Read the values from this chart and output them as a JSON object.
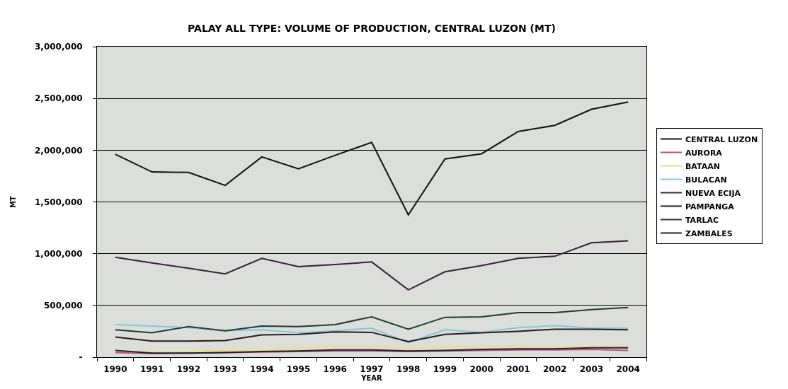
{
  "chart_data": {
    "type": "line",
    "title": "PALAY ALL TYPE: VOLUME OF PRODUCTION, CENTRAL LUZON (MT)",
    "xlabel": "YEAR",
    "ylabel": "MT",
    "categories": [
      "1990",
      "1991",
      "1992",
      "1993",
      "1994",
      "1995",
      "1996",
      "1997",
      "1998",
      "1999",
      "2000",
      "2001",
      "2002",
      "2003",
      "2004"
    ],
    "series": [
      {
        "name": "CENTRAL LUZON",
        "color": "#111111",
        "values": [
          1960000,
          1790000,
          1785000,
          1660000,
          1935000,
          1820000,
          1950000,
          2075000,
          1375000,
          1915000,
          1965000,
          2180000,
          2240000,
          2395000,
          2465000
        ]
      },
      {
        "name": "AURORA",
        "color": "#c0507a",
        "values": [
          45000,
          35000,
          40000,
          45000,
          50000,
          55000,
          60000,
          60000,
          55000,
          60000,
          65000,
          70000,
          70000,
          75000,
          65000
        ]
      },
      {
        "name": "BATAAN",
        "color": "#f0dc82",
        "values": [
          60000,
          50000,
          55000,
          65000,
          70000,
          85000,
          100000,
          100000,
          85000,
          95000,
          100000,
          105000,
          100000,
          105000,
          105000
        ]
      },
      {
        "name": "BULACAN",
        "color": "#7ec8e3",
        "values": [
          315000,
          300000,
          285000,
          255000,
          265000,
          235000,
          255000,
          280000,
          140000,
          265000,
          240000,
          285000,
          305000,
          280000,
          280000
        ]
      },
      {
        "name": "NUEVA ECIJA",
        "color": "#3a1f3d",
        "values": [
          965000,
          910000,
          860000,
          805000,
          955000,
          875000,
          895000,
          920000,
          650000,
          825000,
          885000,
          955000,
          975000,
          1105000,
          1125000
        ]
      },
      {
        "name": "PAMPANGA",
        "color": "#2a1a1a",
        "values": [
          195000,
          155000,
          155000,
          160000,
          215000,
          220000,
          245000,
          240000,
          150000,
          220000,
          235000,
          250000,
          270000,
          270000,
          265000
        ]
      },
      {
        "name": "TARLAC",
        "color": "#1f3a3a",
        "values": [
          265000,
          235000,
          295000,
          255000,
          300000,
          295000,
          315000,
          390000,
          270000,
          385000,
          390000,
          430000,
          430000,
          460000,
          480000
        ]
      },
      {
        "name": "ZAMBALES",
        "color": "#202030",
        "values": [
          65000,
          40000,
          40000,
          45000,
          55000,
          60000,
          70000,
          70000,
          60000,
          65000,
          75000,
          80000,
          80000,
          90000,
          90000
        ]
      }
    ],
    "ylim": [
      0,
      3000000
    ],
    "yticks": [
      {
        "value": 0,
        "label": "-"
      },
      {
        "value": 500000,
        "label": "500,000"
      },
      {
        "value": 1000000,
        "label": "1,000,000"
      },
      {
        "value": 1500000,
        "label": "1,500,000"
      },
      {
        "value": 2000000,
        "label": "2,000,000"
      },
      {
        "value": 2500000,
        "label": "2,500,000"
      },
      {
        "value": 3000000,
        "label": "3,000,000"
      }
    ],
    "grid": "y",
    "legend": "right",
    "line_style": "solid"
  }
}
